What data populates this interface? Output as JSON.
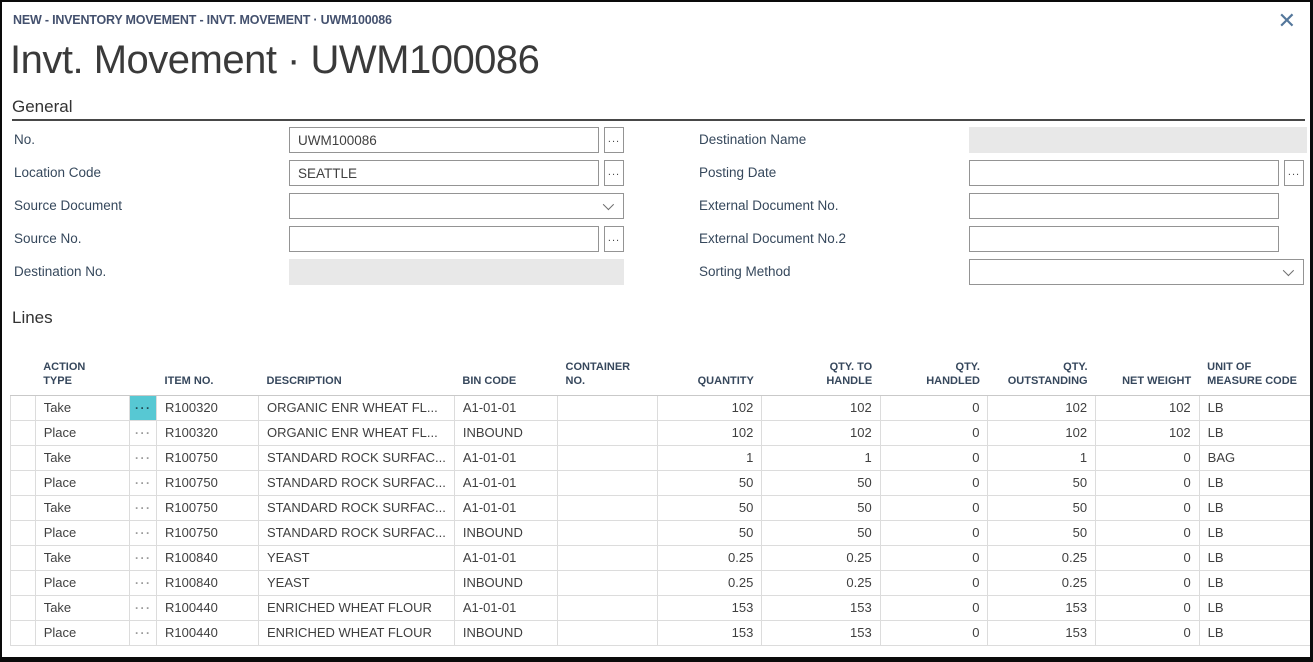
{
  "breadcrumb": "NEW - INVENTORY MOVEMENT - INVT. MOVEMENT · UWM100086",
  "page_title": "Invt. Movement · UWM100086",
  "glyphs": {
    "assist": "...",
    "row_menu": "···",
    "close": "✕"
  },
  "colors": {
    "accent_teal": "#57c8d3",
    "label_navy": "#36485c",
    "breadcrumb_navy": "#44516e",
    "disabled_field": "#e8e8e8",
    "gridline": "#dcdcdc"
  },
  "general": {
    "heading": "General",
    "left": [
      {
        "label": "No.",
        "value": "UWM100086",
        "control": "lookup"
      },
      {
        "label": "Location Code",
        "value": "SEATTLE",
        "control": "lookup"
      },
      {
        "label": "Source Document",
        "value": "",
        "control": "dropdown"
      },
      {
        "label": "Source No.",
        "value": "",
        "control": "lookup"
      },
      {
        "label": "Destination No.",
        "value": "",
        "control": "disabled"
      }
    ],
    "right": [
      {
        "label": "Destination Name",
        "value": "",
        "control": "disabled"
      },
      {
        "label": "Posting Date",
        "value": "",
        "control": "lookup"
      },
      {
        "label": "External Document No.",
        "value": "",
        "control": "text"
      },
      {
        "label": "External Document No.2",
        "value": "",
        "control": "text"
      },
      {
        "label": "Sorting Method",
        "value": "",
        "control": "dropdown"
      }
    ]
  },
  "lines": {
    "heading": "Lines",
    "selected_menu_row": 0,
    "columns": [
      {
        "key": "selector",
        "label": ""
      },
      {
        "key": "action",
        "label": "ACTION TYPE"
      },
      {
        "key": "menu",
        "label": ""
      },
      {
        "key": "item_no",
        "label": "ITEM NO."
      },
      {
        "key": "description",
        "label": "DESCRIPTION"
      },
      {
        "key": "bin_code",
        "label": "BIN CODE"
      },
      {
        "key": "container_no",
        "label": "CONTAINER NO."
      },
      {
        "key": "quantity",
        "label": "QUANTITY",
        "align": "right"
      },
      {
        "key": "qty_to_handle",
        "label": "QTY. TO HANDLE",
        "align": "right"
      },
      {
        "key": "qty_handled",
        "label": "QTY. HANDLED",
        "align": "right"
      },
      {
        "key": "qty_outstanding",
        "label": "QTY. OUTSTANDING",
        "align": "right"
      },
      {
        "key": "net_weight",
        "label": "NET WEIGHT",
        "align": "right"
      },
      {
        "key": "uom",
        "label": "UNIT OF MEASURE CODE"
      }
    ],
    "rows": [
      {
        "action": "Take",
        "item_no": "R100320",
        "description": "ORGANIC ENR WHEAT FL...",
        "bin_code": "A1-01-01",
        "container_no": "",
        "quantity": "102",
        "qty_to_handle": "102",
        "qty_handled": "0",
        "qty_outstanding": "102",
        "net_weight": "102",
        "uom": "LB"
      },
      {
        "action": "Place",
        "item_no": "R100320",
        "description": "ORGANIC ENR WHEAT FL...",
        "bin_code": "INBOUND",
        "container_no": "",
        "quantity": "102",
        "qty_to_handle": "102",
        "qty_handled": "0",
        "qty_outstanding": "102",
        "net_weight": "102",
        "uom": "LB"
      },
      {
        "action": "Take",
        "item_no": "R100750",
        "description": "STANDARD ROCK SURFAC...",
        "bin_code": "A1-01-01",
        "container_no": "",
        "quantity": "1",
        "qty_to_handle": "1",
        "qty_handled": "0",
        "qty_outstanding": "1",
        "net_weight": "0",
        "uom": "BAG"
      },
      {
        "action": "Place",
        "item_no": "R100750",
        "description": "STANDARD ROCK SURFAC...",
        "bin_code": "A1-01-01",
        "container_no": "",
        "quantity": "50",
        "qty_to_handle": "50",
        "qty_handled": "0",
        "qty_outstanding": "50",
        "net_weight": "0",
        "uom": "LB"
      },
      {
        "action": "Take",
        "item_no": "R100750",
        "description": "STANDARD ROCK SURFAC...",
        "bin_code": "A1-01-01",
        "container_no": "",
        "quantity": "50",
        "qty_to_handle": "50",
        "qty_handled": "0",
        "qty_outstanding": "50",
        "net_weight": "0",
        "uom": "LB"
      },
      {
        "action": "Place",
        "item_no": "R100750",
        "description": "STANDARD ROCK SURFAC...",
        "bin_code": "INBOUND",
        "container_no": "",
        "quantity": "50",
        "qty_to_handle": "50",
        "qty_handled": "0",
        "qty_outstanding": "50",
        "net_weight": "0",
        "uom": "LB"
      },
      {
        "action": "Take",
        "item_no": "R100840",
        "description": "YEAST",
        "bin_code": "A1-01-01",
        "container_no": "",
        "quantity": "0.25",
        "qty_to_handle": "0.25",
        "qty_handled": "0",
        "qty_outstanding": "0.25",
        "net_weight": "0",
        "uom": "LB"
      },
      {
        "action": "Place",
        "item_no": "R100840",
        "description": "YEAST",
        "bin_code": "INBOUND",
        "container_no": "",
        "quantity": "0.25",
        "qty_to_handle": "0.25",
        "qty_handled": "0",
        "qty_outstanding": "0.25",
        "net_weight": "0",
        "uom": "LB"
      },
      {
        "action": "Take",
        "item_no": "R100440",
        "description": "ENRICHED WHEAT FLOUR",
        "bin_code": "A1-01-01",
        "container_no": "",
        "quantity": "153",
        "qty_to_handle": "153",
        "qty_handled": "0",
        "qty_outstanding": "153",
        "net_weight": "0",
        "uom": "LB"
      },
      {
        "action": "Place",
        "item_no": "R100440",
        "description": "ENRICHED WHEAT FLOUR",
        "bin_code": "INBOUND",
        "container_no": "",
        "quantity": "153",
        "qty_to_handle": "153",
        "qty_handled": "0",
        "qty_outstanding": "153",
        "net_weight": "0",
        "uom": "LB"
      }
    ]
  }
}
